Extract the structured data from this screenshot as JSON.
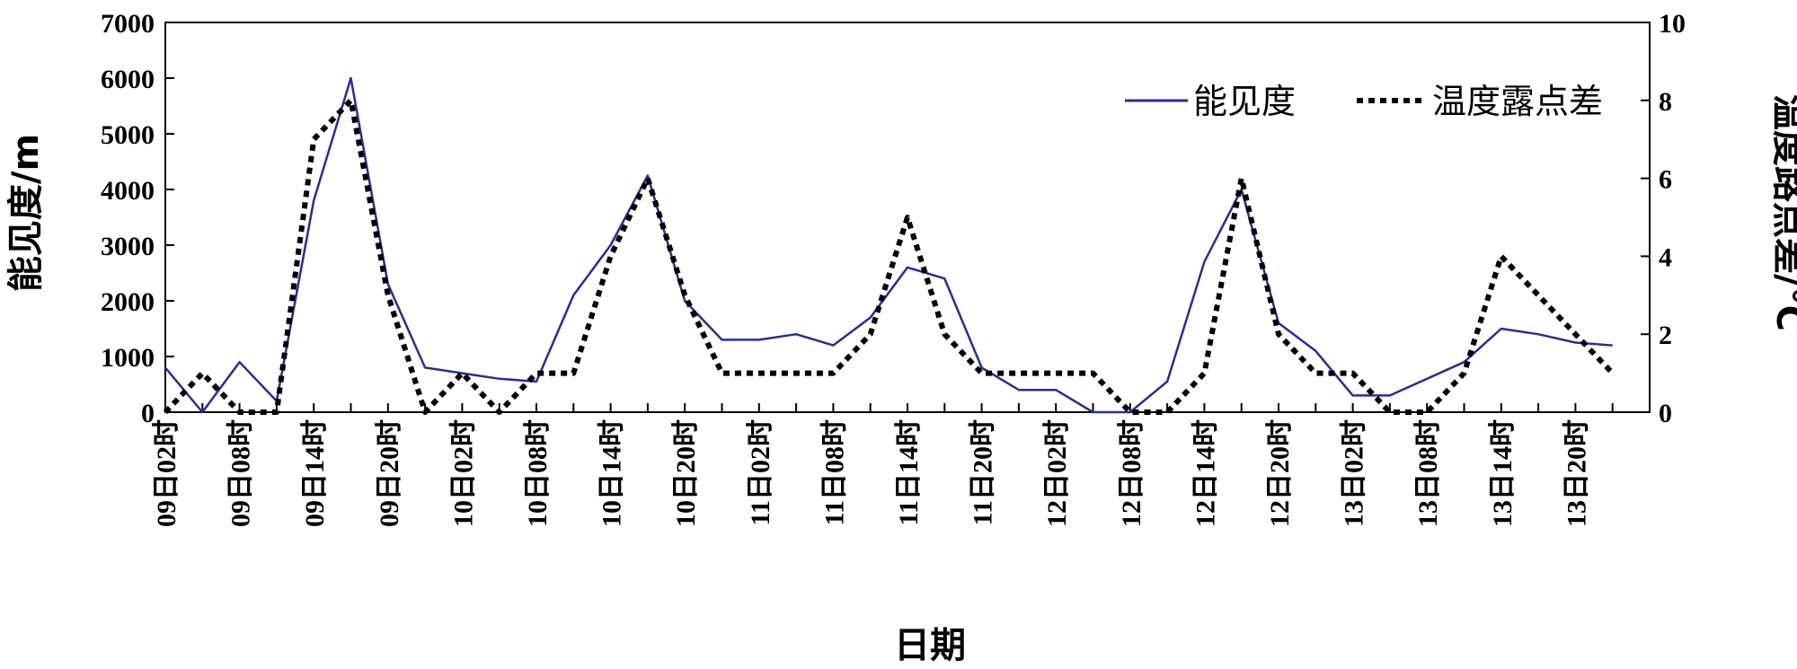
{
  "chart_data": {
    "type": "line",
    "xlabel": "日期",
    "ylabel_left": "能见度/m",
    "ylabel_right": "温度路点差/°C",
    "ylim_left": [
      0,
      7000
    ],
    "ylim_right": [
      0,
      10
    ],
    "yticks_left": [
      "0",
      "1000",
      "2000",
      "3000",
      "4000",
      "5000",
      "6000",
      "7000"
    ],
    "yticks_right": [
      "0",
      "2",
      "4",
      "6",
      "8",
      "10"
    ],
    "x_labels": [
      "09日02时",
      "09日08时",
      "09日14时",
      "09日20时",
      "10日02时",
      "10日08时",
      "10日14时",
      "10日20时",
      "11日02时",
      "11日08时",
      "11日14时",
      "11日20时",
      "12日02时",
      "12日08时",
      "12日14时",
      "12日20时",
      "13日02时",
      "13日08时",
      "13日14时",
      "13日20时"
    ],
    "grid": false,
    "legend_position": "top-right",
    "series": [
      {
        "name": "能见度",
        "axis": "left",
        "color": "#2b2b9a",
        "style": "solid",
        "values": [
          800,
          0,
          900,
          200,
          3800,
          6000,
          2300,
          800,
          700,
          600,
          550,
          2100,
          3000,
          4250,
          2000,
          1300,
          1300,
          1400,
          1200,
          1700,
          2600,
          2400,
          800,
          400,
          400,
          0,
          0,
          550,
          2700,
          4000,
          1600,
          1100,
          300,
          300,
          600,
          900,
          1500,
          1400,
          1250,
          1200
        ]
      },
      {
        "name": "温度露点差",
        "axis": "right",
        "color": "#000000",
        "style": "dotted",
        "values": [
          0,
          1,
          0,
          0,
          7,
          8,
          3,
          0,
          1,
          0,
          1,
          1,
          4,
          6,
          3,
          1,
          1,
          1,
          1,
          2,
          5,
          2,
          1,
          1,
          1,
          1,
          0,
          0,
          1,
          6,
          2,
          1,
          1,
          0,
          0,
          1,
          4,
          3,
          2,
          1
        ]
      }
    ]
  }
}
